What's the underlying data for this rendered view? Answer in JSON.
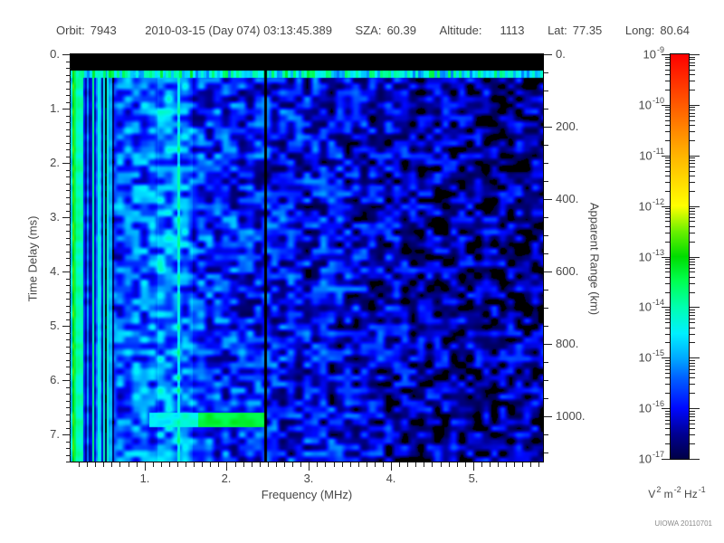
{
  "header": {
    "items": [
      {
        "label": "Orbit:",
        "value": "7943"
      },
      {
        "label": "",
        "value": "2010-03-15 (Day 074) 03:13:45.389"
      },
      {
        "label": "SZA:",
        "value": "60.39"
      },
      {
        "label": "Altitude:",
        "value": "1113"
      },
      {
        "label": "Lat:",
        "value": "77.35"
      },
      {
        "label": "Long:",
        "value": "80.64"
      }
    ]
  },
  "watermark": "UIOWA 20110701",
  "chart_data": {
    "type": "heatmap",
    "subtype": "radar-sounder-ionogram-spectrogram",
    "x_axis": {
      "label": "Frequency (MHz)",
      "range": [
        0.1,
        5.85
      ],
      "major_tick_values": [
        1,
        2,
        3,
        4,
        5
      ],
      "major_tick_labels": [
        "1.",
        "2.",
        "3.",
        "4.",
        "5."
      ],
      "minor_step": 0.1
    },
    "y_axis_left": {
      "label": "Time Delay (ms)",
      "range": [
        0,
        7.5
      ],
      "major_tick_values": [
        0,
        1,
        2,
        3,
        4,
        5,
        6,
        7
      ],
      "major_tick_labels": [
        "0.",
        "1.",
        "2.",
        "3.",
        "4.",
        "5.",
        "6.",
        "7."
      ],
      "minor_step": 0.125,
      "direction": "increasing-downward"
    },
    "y_axis_right": {
      "label": "Apparent Range (km)",
      "range": [
        0,
        1125
      ],
      "major_tick_values": [
        0,
        200,
        400,
        600,
        800,
        1000
      ],
      "major_tick_labels": [
        "0.",
        "200.",
        "400.",
        "600.",
        "800.",
        "1000."
      ],
      "minor_step": 50,
      "direction": "increasing-downward"
    },
    "colorbar": {
      "scale": "log",
      "decade_exponents": [
        -9,
        -10,
        -11,
        -12,
        -13,
        -14,
        -15,
        -16,
        -17
      ],
      "unit_parts": [
        {
          "t": "V"
        },
        {
          "s": "2"
        },
        {
          "t": " m"
        },
        {
          "s": "-2"
        },
        {
          "t": " Hz"
        },
        {
          "s": "-1"
        }
      ],
      "colormap_stops": [
        {
          "t": 0.0,
          "color": "#000046"
        },
        {
          "t": 0.06,
          "color": "#000090"
        },
        {
          "t": 0.125,
          "color": "#0008ff"
        },
        {
          "t": 0.2,
          "color": "#0060ff"
        },
        {
          "t": 0.25,
          "color": "#00aaff"
        },
        {
          "t": 0.31,
          "color": "#00f0ff"
        },
        {
          "t": 0.375,
          "color": "#00ffb0"
        },
        {
          "t": 0.44,
          "color": "#00ff50"
        },
        {
          "t": 0.5,
          "color": "#00dc00"
        },
        {
          "t": 0.56,
          "color": "#66f000"
        },
        {
          "t": 0.625,
          "color": "#ffff00"
        },
        {
          "t": 0.75,
          "color": "#ffb400"
        },
        {
          "t": 0.875,
          "color": "#ff5a00"
        },
        {
          "t": 1.0,
          "color": "#ff0000"
        }
      ]
    },
    "spectrogram": {
      "seed": 20110701,
      "freq_range": [
        0.1,
        5.85
      ],
      "delay_range_ms": [
        0,
        7.5
      ],
      "power_floor_log10": -17,
      "power_top_log10": -9,
      "noise_amplitude": 1.05,
      "base_levels_log10": [
        [
          0.1,
          -15.1
        ],
        [
          0.6,
          -15.6
        ],
        [
          1.1,
          -15.35
        ],
        [
          1.6,
          -15.7
        ],
        [
          2.5,
          -15.95
        ],
        [
          3.5,
          -16.15
        ],
        [
          4.3,
          -16.45
        ],
        [
          5.85,
          -16.55
        ]
      ],
      "features": {
        "top_black_band_ms": [
          0.0,
          0.3
        ],
        "surface_row_ms": [
          0.3,
          0.42
        ],
        "stripe_region_mhz": [
          0.1,
          0.62
        ],
        "bright_left_edge_mhz": 0.14,
        "bright_column_mhz": [
          1.15,
          1.58
        ],
        "bright_vline_mhz": 1.41,
        "dark_vline_mhz": 2.47,
        "echo_trace": {
          "delay_ms": [
            6.6,
            6.85
          ],
          "freq_mhz": [
            1.05,
            2.47
          ],
          "green_freq_mhz": [
            1.65,
            2.45
          ],
          "peak_level_log10": -13.2
        }
      }
    }
  }
}
